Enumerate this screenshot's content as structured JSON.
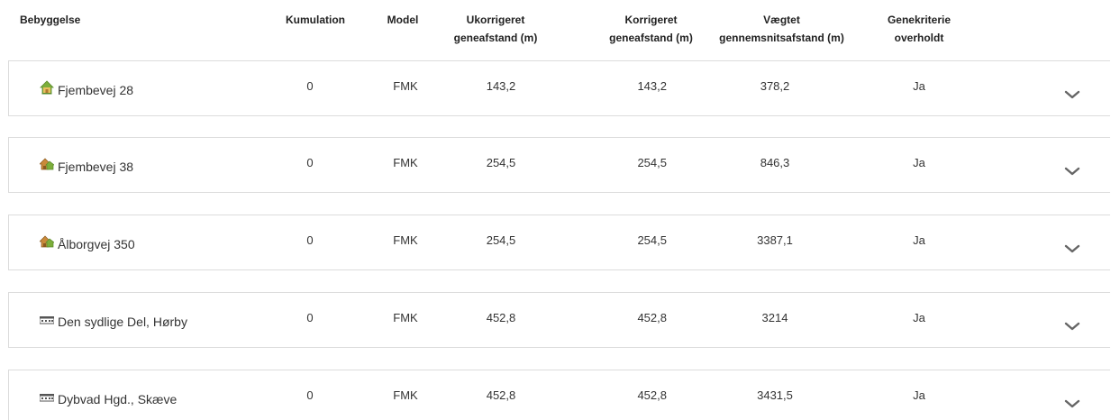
{
  "header": {
    "bebyggelse": "Bebyggelse",
    "kumulation": "Kumulation",
    "model": "Model",
    "ukorrigeret": "Ukorrigeret\ngeneafstand (m)",
    "korrigeret": "Korrigeret\ngeneafstand (m)",
    "vaegtet": "Vægtet\ngennemsnitsafstand (m)",
    "genekriterie": "Genekriterie\noverholdt"
  },
  "rows": [
    {
      "name": "Fjembevej 28",
      "icon": "house-icon",
      "kumulation": "0",
      "model": "FMK",
      "ukorrigeret": "143,2",
      "korrigeret": "143,2",
      "vaegtet": "378,2",
      "genekriterie": "Ja"
    },
    {
      "name": "Fjembevej 38",
      "icon": "farm-icon",
      "kumulation": "0",
      "model": "FMK",
      "ukorrigeret": "254,5",
      "korrigeret": "254,5",
      "vaegtet": "846,3",
      "genekriterie": "Ja"
    },
    {
      "name": "Ålborgvej 350",
      "icon": "farm-icon",
      "kumulation": "0",
      "model": "FMK",
      "ukorrigeret": "254,5",
      "korrigeret": "254,5",
      "vaegtet": "3387,1",
      "genekriterie": "Ja"
    },
    {
      "name": "Den sydlige Del, Hørby",
      "icon": "town-icon",
      "kumulation": "0",
      "model": "FMK",
      "ukorrigeret": "452,8",
      "korrigeret": "452,8",
      "vaegtet": "3214",
      "genekriterie": "Ja"
    },
    {
      "name": "Dybvad Hgd., Skæve",
      "icon": "town-icon",
      "kumulation": "0",
      "model": "FMK",
      "ukorrigeret": "452,8",
      "korrigeret": "452,8",
      "vaegtet": "3431,5",
      "genekriterie": "Ja"
    }
  ]
}
